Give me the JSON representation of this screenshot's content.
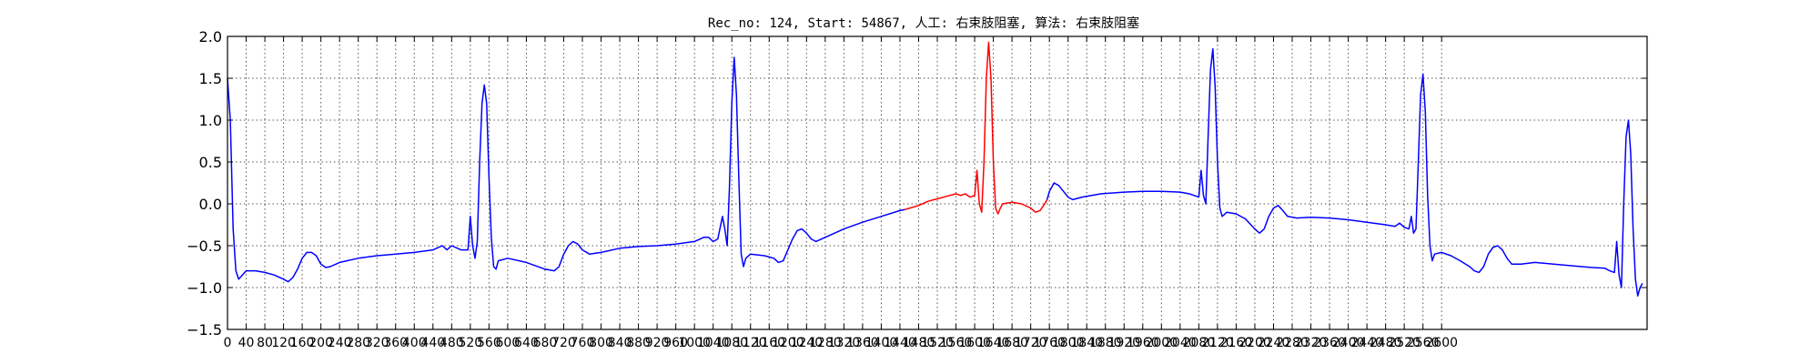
{
  "chart_data": {
    "type": "line",
    "title": "Rec_no: 124, Start: 54867, 人工: 右束肢阻塞, 算法: 右束肢阻塞",
    "xlabel": "",
    "ylabel": "",
    "xlim": [
      0,
      3040
    ],
    "ylim": [
      -1.5,
      2.0
    ],
    "grid": true,
    "yticks": [
      -1.5,
      -1.0,
      -0.5,
      0.0,
      0.5,
      1.0,
      1.5,
      2.0
    ],
    "ytick_labels": [
      "−1.5",
      "−1.0",
      "−0.5",
      "0.0",
      "0.5",
      "1.0",
      "1.5",
      "2.0"
    ],
    "xticks": [
      0,
      40,
      80,
      120,
      160,
      200,
      240,
      280,
      320,
      360,
      400,
      440,
      480,
      520,
      560,
      600,
      640,
      680,
      720,
      760,
      800,
      840,
      880,
      920,
      960,
      1000,
      1040,
      1080,
      1120,
      1160,
      1200,
      1240,
      1280,
      1320,
      1360,
      1400,
      1440,
      1480,
      1520,
      1560,
      1600,
      1640,
      1680,
      1720,
      1760,
      1800,
      1840,
      1880,
      1920,
      1960,
      2000,
      2040,
      2080,
      2120,
      2160,
      2200,
      2240,
      2280,
      2320,
      2360,
      2400,
      2440,
      2480,
      2520,
      2560,
      2600
    ],
    "xtick_labels": [
      "0",
      "40",
      "80",
      "120",
      "160",
      "200",
      "240",
      "280",
      "320",
      "360",
      "400",
      "440",
      "480",
      "520",
      "560",
      "600",
      "640",
      "680",
      "720",
      "760",
      "800",
      "840",
      "880",
      "920",
      "960",
      "1000",
      "1040",
      "1080",
      "1120",
      "1160",
      "1200",
      "1240",
      "1280",
      "1320",
      "1360",
      "1400",
      "1440",
      "1480",
      "1520",
      "1560",
      "1600",
      "1640",
      "1680",
      "1720",
      "1760",
      "1800",
      "1840",
      "1880",
      "1920",
      "1960",
      "2000",
      "2040",
      "2080",
      "2120",
      "2160",
      "2200",
      "2240",
      "2280",
      "2320",
      "2360",
      "2400",
      "2440",
      "2480",
      "2520",
      "2560",
      "2600"
    ],
    "series": [
      {
        "color": "#0000ff",
        "points": [
          [
            0,
            1.5
          ],
          [
            6,
            1.0
          ],
          [
            12,
            -0.3
          ],
          [
            18,
            -0.8
          ],
          [
            24,
            -0.9
          ],
          [
            32,
            -0.85
          ],
          [
            40,
            -0.8
          ],
          [
            60,
            -0.8
          ],
          [
            80,
            -0.82
          ],
          [
            100,
            -0.85
          ],
          [
            120,
            -0.9
          ],
          [
            130,
            -0.93
          ],
          [
            140,
            -0.88
          ],
          [
            150,
            -0.78
          ],
          [
            160,
            -0.65
          ],
          [
            170,
            -0.58
          ],
          [
            180,
            -0.58
          ],
          [
            190,
            -0.62
          ],
          [
            200,
            -0.72
          ],
          [
            210,
            -0.76
          ],
          [
            220,
            -0.75
          ],
          [
            240,
            -0.7
          ],
          [
            280,
            -0.65
          ],
          [
            320,
            -0.62
          ],
          [
            360,
            -0.6
          ],
          [
            400,
            -0.58
          ],
          [
            440,
            -0.55
          ],
          [
            460,
            -0.5
          ],
          [
            470,
            -0.55
          ],
          [
            480,
            -0.5
          ],
          [
            500,
            -0.55
          ],
          [
            515,
            -0.55
          ],
          [
            520,
            -0.15
          ],
          [
            525,
            -0.5
          ],
          [
            530,
            -0.65
          ],
          [
            535,
            -0.45
          ],
          [
            540,
            0.5
          ],
          [
            545,
            1.2
          ],
          [
            550,
            1.42
          ],
          [
            555,
            1.2
          ],
          [
            560,
            0.3
          ],
          [
            565,
            -0.4
          ],
          [
            570,
            -0.75
          ],
          [
            575,
            -0.78
          ],
          [
            580,
            -0.68
          ],
          [
            600,
            -0.65
          ],
          [
            640,
            -0.7
          ],
          [
            680,
            -0.78
          ],
          [
            700,
            -0.8
          ],
          [
            710,
            -0.75
          ],
          [
            720,
            -0.6
          ],
          [
            730,
            -0.5
          ],
          [
            740,
            -0.45
          ],
          [
            750,
            -0.48
          ],
          [
            760,
            -0.55
          ],
          [
            775,
            -0.6
          ],
          [
            800,
            -0.58
          ],
          [
            840,
            -0.53
          ],
          [
            880,
            -0.51
          ],
          [
            920,
            -0.5
          ],
          [
            960,
            -0.48
          ],
          [
            1000,
            -0.45
          ],
          [
            1020,
            -0.4
          ],
          [
            1030,
            -0.4
          ],
          [
            1040,
            -0.45
          ],
          [
            1050,
            -0.42
          ],
          [
            1060,
            -0.15
          ],
          [
            1065,
            -0.3
          ],
          [
            1070,
            -0.5
          ],
          [
            1075,
            0.2
          ],
          [
            1080,
            1.2
          ],
          [
            1085,
            1.75
          ],
          [
            1090,
            1.3
          ],
          [
            1095,
            0.3
          ],
          [
            1100,
            -0.6
          ],
          [
            1105,
            -0.75
          ],
          [
            1110,
            -0.65
          ],
          [
            1120,
            -0.6
          ],
          [
            1150,
            -0.62
          ],
          [
            1170,
            -0.65
          ],
          [
            1180,
            -0.7
          ],
          [
            1190,
            -0.68
          ],
          [
            1200,
            -0.55
          ],
          [
            1210,
            -0.42
          ],
          [
            1220,
            -0.32
          ],
          [
            1230,
            -0.3
          ],
          [
            1240,
            -0.35
          ],
          [
            1250,
            -0.42
          ],
          [
            1260,
            -0.45
          ],
          [
            1280,
            -0.4
          ],
          [
            1320,
            -0.3
          ],
          [
            1360,
            -0.22
          ],
          [
            1400,
            -0.15
          ],
          [
            1440,
            -0.08
          ],
          [
            1450,
            -0.07
          ]
        ]
      },
      {
        "color": "#ff0000",
        "points": [
          [
            1450,
            -0.07
          ],
          [
            1480,
            -0.02
          ],
          [
            1500,
            0.03
          ],
          [
            1520,
            0.06
          ],
          [
            1540,
            0.09
          ],
          [
            1560,
            0.12
          ],
          [
            1570,
            0.1
          ],
          [
            1580,
            0.12
          ],
          [
            1590,
            0.08
          ],
          [
            1600,
            0.1
          ],
          [
            1605,
            0.4
          ],
          [
            1610,
            0.0
          ],
          [
            1615,
            -0.1
          ],
          [
            1620,
            0.5
          ],
          [
            1625,
            1.5
          ],
          [
            1630,
            1.93
          ],
          [
            1635,
            1.5
          ],
          [
            1640,
            0.5
          ],
          [
            1645,
            -0.05
          ],
          [
            1650,
            -0.12
          ],
          [
            1655,
            -0.05
          ],
          [
            1660,
            0.0
          ],
          [
            1680,
            0.02
          ],
          [
            1700,
            0.0
          ],
          [
            1720,
            -0.05
          ],
          [
            1730,
            -0.1
          ],
          [
            1740,
            -0.08
          ],
          [
            1750,
            0.0
          ],
          [
            1755,
            0.05
          ]
        ]
      },
      {
        "color": "#0000ff",
        "points": [
          [
            1755,
            0.05
          ],
          [
            1760,
            0.15
          ],
          [
            1770,
            0.25
          ],
          [
            1780,
            0.22
          ],
          [
            1790,
            0.15
          ],
          [
            1800,
            0.08
          ],
          [
            1810,
            0.05
          ],
          [
            1830,
            0.08
          ],
          [
            1870,
            0.12
          ],
          [
            1920,
            0.14
          ],
          [
            1960,
            0.15
          ],
          [
            2000,
            0.15
          ],
          [
            2040,
            0.14
          ],
          [
            2060,
            0.12
          ],
          [
            2070,
            0.1
          ],
          [
            2080,
            0.08
          ],
          [
            2085,
            0.4
          ],
          [
            2090,
            0.1
          ],
          [
            2095,
            0.0
          ],
          [
            2100,
            0.8
          ],
          [
            2105,
            1.6
          ],
          [
            2110,
            1.85
          ],
          [
            2115,
            1.4
          ],
          [
            2120,
            0.5
          ],
          [
            2125,
            -0.05
          ],
          [
            2130,
            -0.15
          ],
          [
            2140,
            -0.1
          ],
          [
            2160,
            -0.12
          ],
          [
            2180,
            -0.18
          ],
          [
            2200,
            -0.3
          ],
          [
            2210,
            -0.35
          ],
          [
            2220,
            -0.3
          ],
          [
            2230,
            -0.15
          ],
          [
            2240,
            -0.05
          ],
          [
            2250,
            -0.02
          ],
          [
            2260,
            -0.08
          ],
          [
            2270,
            -0.15
          ],
          [
            2290,
            -0.17
          ],
          [
            2320,
            -0.16
          ],
          [
            2360,
            -0.17
          ],
          [
            2400,
            -0.19
          ],
          [
            2440,
            -0.22
          ],
          [
            2480,
            -0.25
          ],
          [
            2500,
            -0.27
          ],
          [
            2510,
            -0.23
          ],
          [
            2520,
            -0.28
          ],
          [
            2530,
            -0.3
          ],
          [
            2535,
            -0.15
          ],
          [
            2540,
            -0.35
          ],
          [
            2545,
            -0.3
          ],
          [
            2550,
            0.5
          ],
          [
            2555,
            1.3
          ],
          [
            2560,
            1.55
          ],
          [
            2565,
            1.1
          ],
          [
            2570,
            0.1
          ],
          [
            2575,
            -0.5
          ],
          [
            2580,
            -0.68
          ],
          [
            2585,
            -0.6
          ],
          [
            2600,
            -0.58
          ],
          [
            2620,
            -0.62
          ],
          [
            2640,
            -0.68
          ],
          [
            2660,
            -0.75
          ],
          [
            2670,
            -0.8
          ],
          [
            2680,
            -0.82
          ],
          [
            2690,
            -0.75
          ],
          [
            2700,
            -0.6
          ],
          [
            2710,
            -0.52
          ],
          [
            2720,
            -0.5
          ],
          [
            2730,
            -0.55
          ],
          [
            2740,
            -0.65
          ],
          [
            2750,
            -0.72
          ],
          [
            2770,
            -0.72
          ],
          [
            2800,
            -0.7
          ],
          [
            2840,
            -0.72
          ],
          [
            2880,
            -0.74
          ],
          [
            2920,
            -0.76
          ],
          [
            2950,
            -0.77
          ],
          [
            2960,
            -0.8
          ],
          [
            2970,
            -0.82
          ],
          [
            2975,
            -0.45
          ],
          [
            2980,
            -0.85
          ],
          [
            2985,
            -1.0
          ],
          [
            2990,
            0.0
          ],
          [
            2995,
            0.8
          ],
          [
            3000,
            1.0
          ],
          [
            3005,
            0.6
          ],
          [
            3010,
            -0.3
          ],
          [
            3015,
            -0.9
          ],
          [
            3020,
            -1.1
          ],
          [
            3025,
            -1.0
          ],
          [
            3030,
            -0.95
          ]
        ]
      }
    ]
  }
}
